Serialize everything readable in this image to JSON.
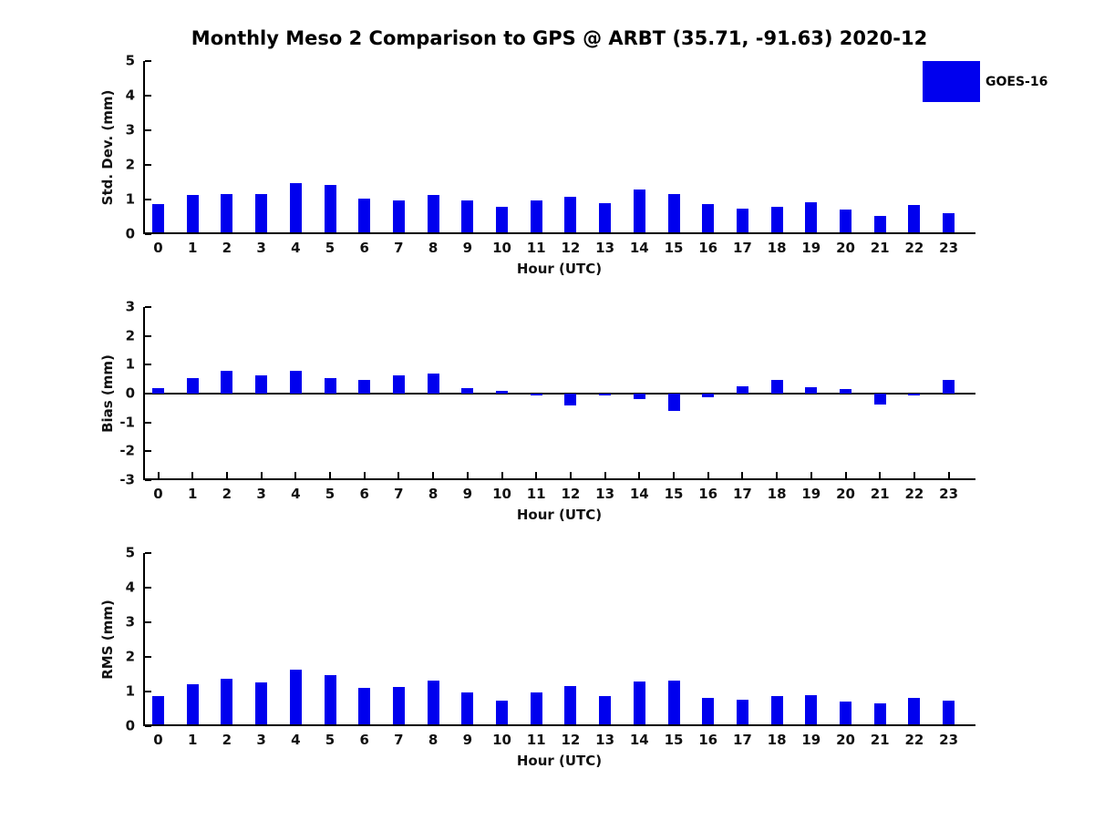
{
  "title": "Monthly Meso 2 Comparison to GPS @ ARBT (35.71, -91.63) 2020-12",
  "legend": {
    "label": "GOES-16",
    "color": "#0000ee"
  },
  "hours": [
    "0",
    "1",
    "2",
    "3",
    "4",
    "5",
    "6",
    "7",
    "8",
    "9",
    "10",
    "11",
    "12",
    "13",
    "14",
    "15",
    "16",
    "17",
    "18",
    "19",
    "20",
    "21",
    "22",
    "23"
  ],
  "chart_data": [
    {
      "type": "bar",
      "ylabel": "Std. Dev. (mm)",
      "xlabel": "Hour (UTC)",
      "ylim": [
        0,
        5
      ],
      "yticks": [
        5,
        4,
        3,
        2,
        1,
        0
      ],
      "grid": false,
      "legend_position": "upper-right",
      "categories": [
        "0",
        "1",
        "2",
        "3",
        "4",
        "5",
        "6",
        "7",
        "8",
        "9",
        "10",
        "11",
        "12",
        "13",
        "14",
        "15",
        "16",
        "17",
        "18",
        "19",
        "20",
        "21",
        "22",
        "23"
      ],
      "series": [
        {
          "name": "GOES-16",
          "color": "#0000ee",
          "values": [
            0.88,
            1.12,
            1.17,
            1.17,
            1.47,
            1.41,
            1.03,
            0.97,
            1.14,
            0.97,
            0.78,
            0.97,
            1.08,
            0.9,
            1.28,
            1.16,
            0.86,
            0.74,
            0.8,
            0.91,
            0.71,
            0.53,
            0.85,
            0.6
          ]
        }
      ]
    },
    {
      "type": "bar",
      "ylabel": "Bias (mm)",
      "xlabel": "Hour (UTC)",
      "ylim": [
        -3,
        3
      ],
      "yticks": [
        3,
        2,
        1,
        0,
        -1,
        -2,
        -3
      ],
      "grid": false,
      "zero_line": true,
      "categories": [
        "0",
        "1",
        "2",
        "3",
        "4",
        "5",
        "6",
        "7",
        "8",
        "9",
        "10",
        "11",
        "12",
        "13",
        "14",
        "15",
        "16",
        "17",
        "18",
        "19",
        "20",
        "21",
        "22",
        "23"
      ],
      "series": [
        {
          "name": "GOES-16",
          "color": "#0000ee",
          "values": [
            0.19,
            0.54,
            0.78,
            0.62,
            0.78,
            0.53,
            0.46,
            0.63,
            0.71,
            0.2,
            0.1,
            -0.05,
            -0.42,
            -0.05,
            -0.18,
            -0.61,
            -0.12,
            0.26,
            0.48,
            0.21,
            0.15,
            -0.38,
            -0.06,
            0.48
          ]
        }
      ]
    },
    {
      "type": "bar",
      "ylabel": "RMS (mm)",
      "xlabel": "Hour (UTC)",
      "ylim": [
        0,
        5
      ],
      "yticks": [
        5,
        4,
        3,
        2,
        1,
        0
      ],
      "grid": false,
      "categories": [
        "0",
        "1",
        "2",
        "3",
        "4",
        "5",
        "6",
        "7",
        "8",
        "9",
        "10",
        "11",
        "12",
        "13",
        "14",
        "15",
        "16",
        "17",
        "18",
        "19",
        "20",
        "21",
        "22",
        "23"
      ],
      "series": [
        {
          "name": "GOES-16",
          "color": "#0000ee",
          "values": [
            0.88,
            1.21,
            1.37,
            1.26,
            1.63,
            1.47,
            1.1,
            1.12,
            1.32,
            0.98,
            0.74,
            0.98,
            1.17,
            0.87,
            1.28,
            1.32,
            0.82,
            0.77,
            0.88,
            0.89,
            0.72,
            0.66,
            0.82,
            0.75
          ]
        }
      ]
    }
  ]
}
